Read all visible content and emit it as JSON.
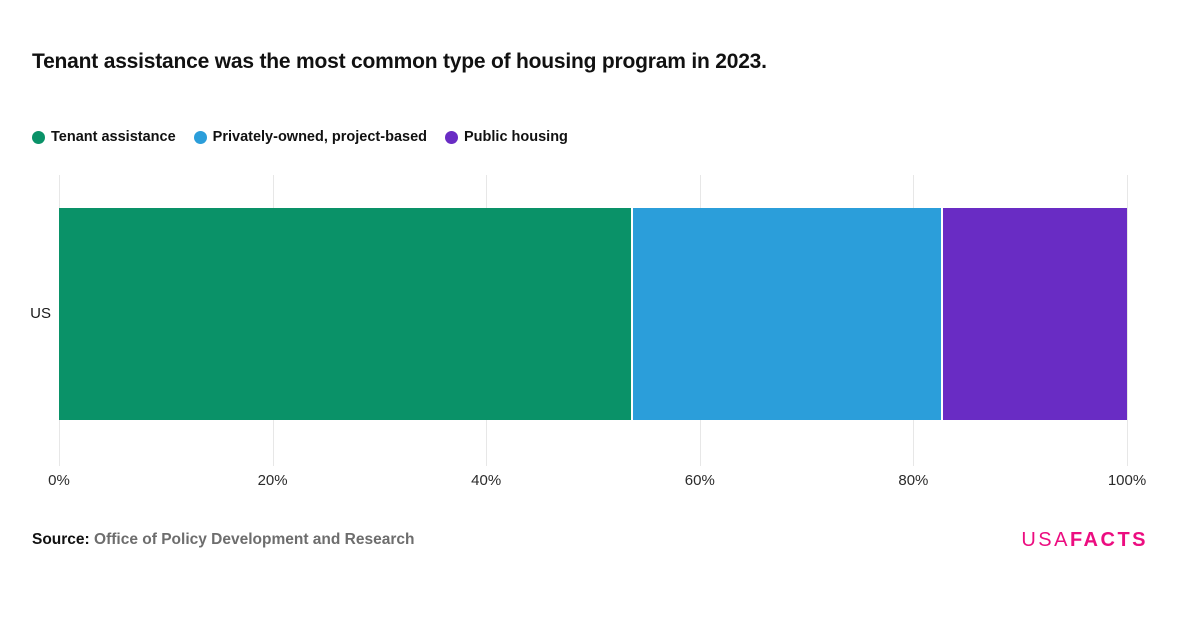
{
  "title": "Tenant assistance was the most common type of housing program in 2023.",
  "legend": [
    {
      "label": "Tenant assistance",
      "color": "#0a9268"
    },
    {
      "label": "Privately-owned, project-based",
      "color": "#2b9eda"
    },
    {
      "label": "Public housing",
      "color": "#692cc4"
    }
  ],
  "chart_data": {
    "type": "bar",
    "orientation": "horizontal",
    "stacked": true,
    "title": "Tenant assistance was the most common type of housing program in 2023.",
    "categories": [
      "US"
    ],
    "series": [
      {
        "name": "Tenant assistance",
        "values": [
          53.7
        ],
        "color": "#0a9268"
      },
      {
        "name": "Privately-owned, project-based",
        "values": [
          29.1
        ],
        "color": "#2b9eda"
      },
      {
        "name": "Public housing",
        "values": [
          17.2
        ],
        "color": "#692cc4"
      }
    ],
    "xlabel": "",
    "ylabel": "",
    "xlim": [
      0,
      100
    ],
    "x_ticks": [
      "0%",
      "20%",
      "40%",
      "60%",
      "80%",
      "100%"
    ],
    "grid": true,
    "legend_position": "top"
  },
  "footer": {
    "source_label": "Source:",
    "source_value": "Office of Policy Development and Research",
    "logo": {
      "part1": "USA",
      "part2": "FACTS",
      "color": "#ec0d80"
    }
  },
  "colors": {
    "background": "#ffffff",
    "gridline": "#e7e7e7",
    "tick_text": "#2b2b2b",
    "title_text": "#111111",
    "source_gray": "#6d6d6d",
    "brand_pink": "#ec0d80"
  }
}
